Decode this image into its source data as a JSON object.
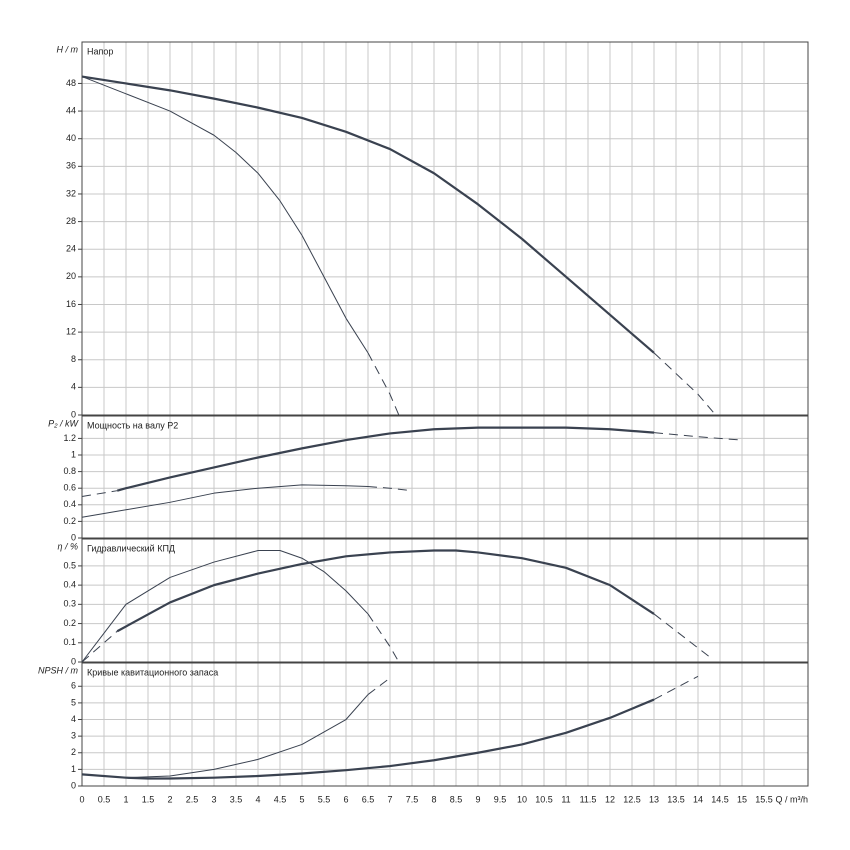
{
  "chart_data": [
    {
      "type": "line",
      "y_label": "H / m",
      "title": "Напор",
      "xlim": [
        0,
        16.5
      ],
      "ylim": [
        0,
        54
      ],
      "yticks": [
        0,
        4,
        8,
        12,
        16,
        20,
        24,
        28,
        32,
        36,
        40,
        44,
        48
      ],
      "series": [
        {
          "color": "#3a4250",
          "width": 2.2,
          "dashed": false,
          "x": [
            0,
            1,
            2,
            3,
            4,
            5,
            6,
            7,
            8,
            9,
            10,
            11,
            12,
            13
          ],
          "values": [
            49,
            48,
            47,
            45.8,
            44.5,
            43,
            41,
            38.5,
            35,
            30.5,
            25.5,
            20,
            14.5,
            9
          ]
        },
        {
          "color": "#3a4250",
          "width": 1,
          "dashed": true,
          "x": [
            13,
            13.5,
            14,
            14.4
          ],
          "values": [
            9,
            6,
            3,
            0
          ]
        },
        {
          "color": "#3a4250",
          "width": 1,
          "dashed": false,
          "x": [
            0,
            1,
            2,
            3,
            3.5,
            4,
            4.5,
            5,
            5.5,
            6,
            6.5
          ],
          "values": [
            49,
            46.5,
            44,
            40.5,
            38,
            35,
            31,
            26,
            20,
            14,
            9
          ]
        },
        {
          "color": "#3a4250",
          "width": 1,
          "dashed": true,
          "x": [
            6.5,
            7,
            7.2
          ],
          "values": [
            9,
            3,
            0
          ]
        }
      ]
    },
    {
      "type": "line",
      "y_label": "P₂ / kW",
      "title": "Мощность на валу P2",
      "xlim": [
        0,
        16.5
      ],
      "ylim": [
        0,
        1.47
      ],
      "yticks": [
        0,
        0.2,
        0.4,
        0.6,
        0.8,
        1,
        1.2
      ],
      "series": [
        {
          "color": "#3a4250",
          "width": 1,
          "dashed": true,
          "x": [
            0,
            0.8
          ],
          "values": [
            0.5,
            0.57
          ]
        },
        {
          "color": "#3a4250",
          "width": 2.2,
          "dashed": false,
          "x": [
            0.8,
            1,
            2,
            3,
            4,
            5,
            6,
            7,
            8,
            9,
            10,
            11,
            12,
            13
          ],
          "values": [
            0.57,
            0.6,
            0.73,
            0.85,
            0.97,
            1.08,
            1.18,
            1.26,
            1.31,
            1.33,
            1.33,
            1.33,
            1.31,
            1.27
          ]
        },
        {
          "color": "#3a4250",
          "width": 1,
          "dashed": true,
          "x": [
            13,
            14,
            15
          ],
          "values": [
            1.27,
            1.22,
            1.18
          ]
        },
        {
          "color": "#3a4250",
          "width": 1,
          "dashed": false,
          "x": [
            0,
            1,
            2,
            3,
            4,
            5,
            6,
            6.5
          ],
          "values": [
            0.25,
            0.34,
            0.43,
            0.54,
            0.6,
            0.64,
            0.63,
            0.62
          ]
        },
        {
          "color": "#3a4250",
          "width": 1,
          "dashed": true,
          "x": [
            6.5,
            7,
            7.5
          ],
          "values": [
            0.62,
            0.6,
            0.57
          ]
        }
      ]
    },
    {
      "type": "line",
      "y_label": "η / %",
      "title": "Гидравлический КПД",
      "xlim": [
        0,
        16.5
      ],
      "ylim": [
        0,
        0.64
      ],
      "yticks": [
        0,
        0.1,
        0.2,
        0.3,
        0.4,
        0.5
      ],
      "series": [
        {
          "color": "#3a4250",
          "width": 1,
          "dashed": true,
          "x": [
            0,
            0.8
          ],
          "values": [
            0,
            0.16
          ]
        },
        {
          "color": "#3a4250",
          "width": 2.2,
          "dashed": false,
          "x": [
            0.8,
            2,
            3,
            4,
            5,
            6,
            7,
            8,
            8.5,
            9,
            10,
            11,
            12,
            13
          ],
          "values": [
            0.16,
            0.31,
            0.4,
            0.46,
            0.51,
            0.55,
            0.57,
            0.58,
            0.58,
            0.57,
            0.54,
            0.49,
            0.4,
            0.25
          ]
        },
        {
          "color": "#3a4250",
          "width": 1,
          "dashed": true,
          "x": [
            13,
            14.3
          ],
          "values": [
            0.25,
            0.02
          ]
        },
        {
          "color": "#3a4250",
          "width": 1,
          "dashed": false,
          "x": [
            0,
            0.5,
            1,
            2,
            3,
            4,
            4.5,
            5,
            5.5,
            6,
            6.5
          ],
          "values": [
            0,
            0.15,
            0.3,
            0.44,
            0.52,
            0.58,
            0.58,
            0.54,
            0.47,
            0.37,
            0.25
          ]
        },
        {
          "color": "#3a4250",
          "width": 1,
          "dashed": true,
          "x": [
            6.5,
            7,
            7.2
          ],
          "values": [
            0.25,
            0.08,
            0
          ]
        }
      ]
    },
    {
      "type": "line",
      "y_label": "NPSH / m",
      "title": "Кривые кавитационного запаса",
      "x_label": "Q / m³/h",
      "xlim": [
        0,
        16.5
      ],
      "ylim": [
        0,
        7.4
      ],
      "yticks": [
        0,
        1,
        2,
        3,
        4,
        5,
        6
      ],
      "xticks": [
        0,
        0.5,
        1,
        1.5,
        2,
        2.5,
        3,
        3.5,
        4,
        4.5,
        5,
        5.5,
        6,
        6.5,
        7,
        7.5,
        8,
        8.5,
        9,
        9.5,
        10,
        10.5,
        11,
        11.5,
        12,
        12.5,
        13,
        13.5,
        14,
        14.5,
        15,
        15.5
      ],
      "series": [
        {
          "color": "#3a4250",
          "width": 2.2,
          "dashed": false,
          "x": [
            0,
            1,
            1.5,
            2,
            3,
            4,
            5,
            6,
            7,
            8,
            9,
            10,
            11,
            12,
            13
          ],
          "values": [
            0.7,
            0.5,
            0.45,
            0.45,
            0.5,
            0.6,
            0.75,
            0.95,
            1.2,
            1.55,
            2,
            2.5,
            3.2,
            4.1,
            5.2
          ]
        },
        {
          "color": "#3a4250",
          "width": 1,
          "dashed": true,
          "x": [
            13,
            14
          ],
          "values": [
            5.2,
            6.6
          ]
        },
        {
          "color": "#3a4250",
          "width": 1,
          "dashed": false,
          "x": [
            0,
            1,
            2,
            3,
            4,
            5,
            6,
            6.5
          ],
          "values": [
            0.7,
            0.5,
            0.6,
            1,
            1.6,
            2.5,
            4,
            5.5
          ]
        },
        {
          "color": "#3a4250",
          "width": 1,
          "dashed": true,
          "x": [
            6.5,
            7
          ],
          "values": [
            5.5,
            6.5
          ]
        }
      ]
    }
  ]
}
